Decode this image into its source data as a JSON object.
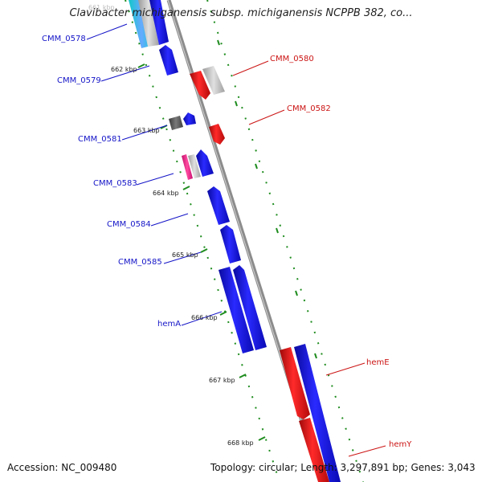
{
  "title": "Clavibacter michiganensis subsp. michiganensis NCPPB 382, co...",
  "footer": {
    "accession": "Accession: NC_009480",
    "topology": "Topology: circular; Length: 3,297,891 bp; Genes: 3,043"
  },
  "ticks": [
    "661 kbp",
    "662 kbp",
    "663 kbp",
    "664 kbp",
    "665 kbp",
    "666 kbp",
    "667 kbp",
    "668 kbp"
  ],
  "genes_forward": [
    {
      "name": "CMM_0578",
      "label": "CMM_0578",
      "color": "#1414c8"
    },
    {
      "name": "CMM_0579",
      "label": "CMM_0579",
      "color": "#1414c8"
    },
    {
      "name": "CMM_0581",
      "label": "CMM_0581",
      "color": "#1414c8"
    },
    {
      "name": "CMM_0583",
      "label": "CMM_0583",
      "color": "#1414c8"
    },
    {
      "name": "CMM_0584",
      "label": "CMM_0584",
      "color": "#1414c8"
    },
    {
      "name": "CMM_0585",
      "label": "CMM_0585",
      "color": "#1414c8"
    },
    {
      "name": "hemA",
      "label": "hemA",
      "color": "#1414c8"
    }
  ],
  "genes_reverse": [
    {
      "name": "CMM_0580",
      "label": "CMM_0580",
      "color": "#cc1414"
    },
    {
      "name": "CMM_0582",
      "label": "CMM_0582",
      "color": "#cc1414"
    },
    {
      "name": "hemE",
      "label": "hemE",
      "color": "#cc1414"
    },
    {
      "name": "hemY",
      "label": "hemY",
      "color": "#cc1414"
    }
  ],
  "colors": {
    "backbone": "#8c8c8c",
    "forward": "#1414e6",
    "reverse": "#e61414",
    "tick": "#1e8c1e"
  }
}
